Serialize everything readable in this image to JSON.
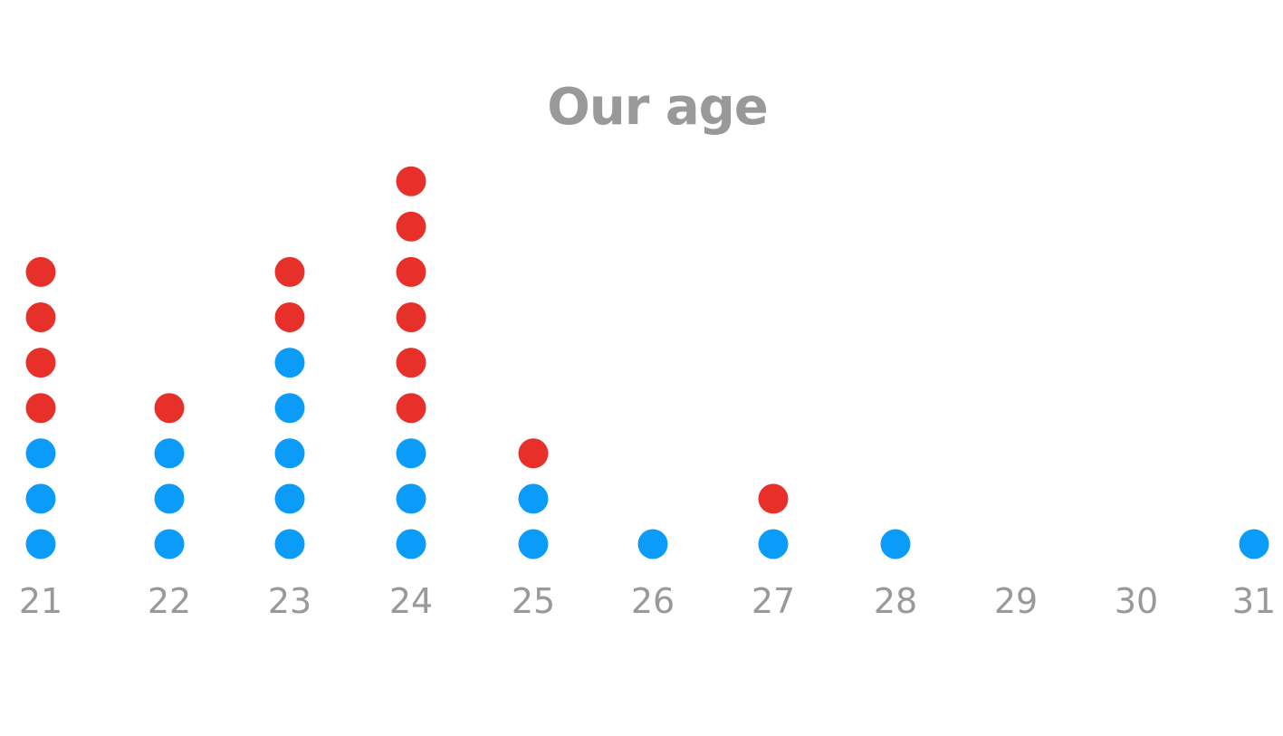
{
  "chart_data": {
    "type": "scatter",
    "title": "Our age",
    "x": [
      21,
      22,
      23,
      24,
      25,
      26,
      27,
      28,
      29,
      30,
      31
    ],
    "categories": [
      "21",
      "22",
      "23",
      "24",
      "25",
      "26",
      "27",
      "28",
      "29",
      "30",
      "31"
    ],
    "series": [
      {
        "color": "#0a9cf8",
        "values": [
          3,
          3,
          5,
          3,
          2,
          1,
          1,
          1,
          0,
          0,
          1
        ]
      },
      {
        "color": "#e8302a",
        "values": [
          4,
          1,
          2,
          6,
          1,
          0,
          1,
          0,
          0,
          0,
          0
        ]
      }
    ],
    "grid": false,
    "legend": "none"
  }
}
